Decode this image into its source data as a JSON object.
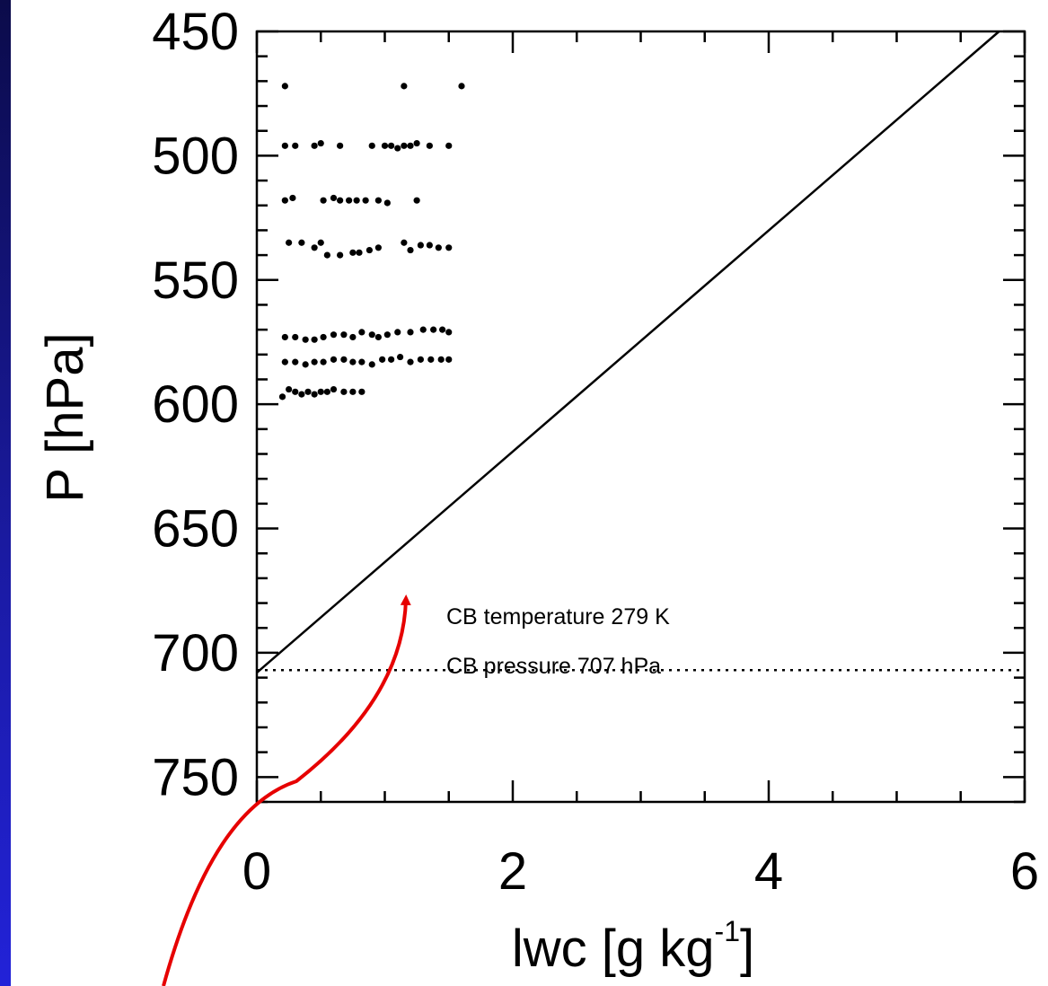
{
  "colors": {
    "background_top": "#0b0b4a",
    "background_bottom": "#2222d8",
    "plot_bg": "#ffffff",
    "ink": "#000000",
    "arrow": "#e60000"
  },
  "chart_data": {
    "type": "scatter",
    "xlabel": {
      "main": "lwc [g kg",
      "sup": "-1",
      "close": "]"
    },
    "ylabel": "P [hPa]",
    "xlim": [
      0,
      6
    ],
    "ylim": [
      760,
      450
    ],
    "y_inverted": true,
    "x_ticks": [
      0,
      2,
      4,
      6
    ],
    "x_tick_labels": [
      "0",
      "2",
      "4",
      "6"
    ],
    "y_ticks": [
      450,
      500,
      550,
      600,
      650,
      700,
      750
    ],
    "y_tick_labels": [
      "450",
      "500",
      "550",
      "600",
      "650",
      "700",
      "750"
    ],
    "grid": false,
    "annotations": [
      "CB temperature 279 K",
      "CB pressure 707 hPa"
    ],
    "cloud_base_pressure": 707,
    "adiabatic_line": {
      "x": [
        0,
        5.8
      ],
      "y": [
        708,
        450
      ]
    },
    "series": [
      {
        "name": "",
        "x": [
          0.22,
          1.15,
          1.6
        ],
        "y": [
          472,
          472,
          472
        ]
      },
      {
        "name": "",
        "x": [
          0.22,
          0.3,
          0.45,
          0.5,
          0.65,
          0.9,
          1.0,
          1.05,
          1.1,
          1.15,
          1.2,
          1.25,
          1.35,
          1.5
        ],
        "y": [
          496,
          496,
          496,
          495,
          496,
          496,
          496,
          496,
          497,
          496,
          496,
          495,
          496,
          496
        ]
      },
      {
        "name": "",
        "x": [
          0.22,
          0.28,
          0.52,
          0.6,
          0.65,
          0.72,
          0.78,
          0.85,
          0.95,
          1.02,
          1.25
        ],
        "y": [
          518,
          517,
          518,
          517,
          518,
          518,
          518,
          518,
          518,
          519,
          518
        ]
      },
      {
        "name": "",
        "x": [
          0.25,
          0.35,
          0.45,
          0.5,
          0.55,
          0.65,
          0.75,
          0.8,
          0.88,
          0.95,
          1.15,
          1.2,
          1.28,
          1.35,
          1.42,
          1.5
        ],
        "y": [
          535,
          535,
          537,
          535,
          540,
          540,
          539,
          539,
          538,
          537,
          535,
          538,
          536,
          536,
          537,
          537
        ]
      },
      {
        "name": "",
        "x": [
          0.22,
          0.3,
          0.38,
          0.45,
          0.52,
          0.6,
          0.68,
          0.75,
          0.82,
          0.9,
          0.95,
          1.02,
          1.1,
          1.2,
          1.3,
          1.38,
          1.45,
          1.5
        ],
        "y": [
          573,
          573,
          574,
          574,
          573,
          572,
          572,
          573,
          571,
          572,
          573,
          572,
          571,
          571,
          570,
          570,
          570,
          571
        ]
      },
      {
        "name": "",
        "x": [
          0.22,
          0.3,
          0.38,
          0.45,
          0.52,
          0.6,
          0.68,
          0.75,
          0.82,
          0.9,
          0.98,
          1.05,
          1.12,
          1.2,
          1.28,
          1.36,
          1.44,
          1.5
        ],
        "y": [
          583,
          583,
          584,
          583,
          583,
          582,
          582,
          583,
          583,
          584,
          582,
          582,
          581,
          583,
          582,
          582,
          582,
          582
        ]
      },
      {
        "name": "",
        "x": [
          0.2,
          0.25,
          0.3,
          0.35,
          0.4,
          0.45,
          0.5,
          0.55,
          0.6,
          0.68,
          0.75,
          0.82
        ],
        "y": [
          597,
          594,
          595,
          596,
          595,
          596,
          595,
          595,
          594,
          595,
          595,
          595
        ]
      }
    ]
  }
}
